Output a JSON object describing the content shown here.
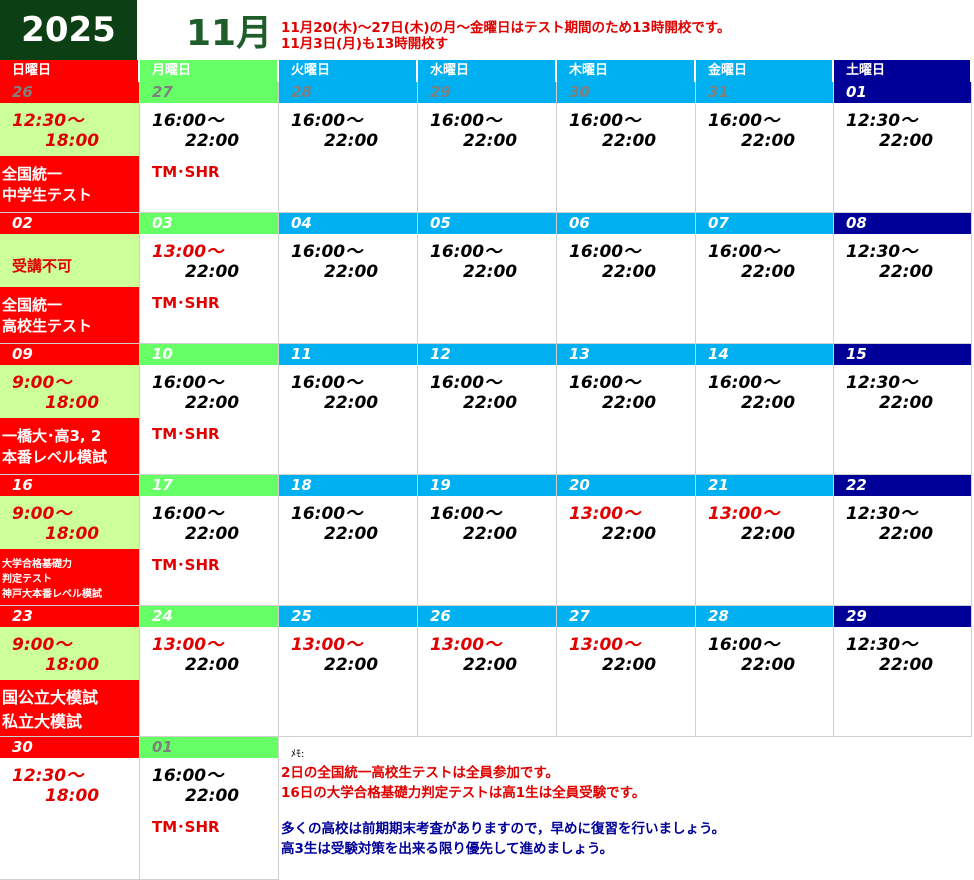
{
  "header": {
    "year": "2025",
    "month": "11月",
    "notice_lines": [
      "11月20(木)～27日(木)の月～金曜日はテスト期間のため13時開校です。",
      "11月3日(月)も13時開校す"
    ]
  },
  "weekdays": [
    "日曜日",
    "月曜日",
    "火曜日",
    "水曜日",
    "木曜日",
    "金曜日",
    "土曜日"
  ],
  "colors": {
    "sunday": "#ff0000",
    "monday": "#66ff66",
    "weekday": "#00b0f0",
    "saturday": "#000099",
    "sunday_cell": "#ccff99",
    "red_text": "#e00000",
    "dark_green": "#0d3f14",
    "grey_date": "#7f7f7f",
    "memo_blue": "#000099"
  },
  "weeks": [
    {
      "days": [
        {
          "date": "26",
          "line1": "12:30～",
          "line2": "18:00",
          "red": true,
          "event": [
            "全国統一",
            "中学生テスト"
          ],
          "dim": true
        },
        {
          "date": "27",
          "line1": "16:00～",
          "line2": "22:00",
          "tm": "TM･SHR",
          "dim": true
        },
        {
          "date": "28",
          "line1": "16:00～",
          "line2": "22:00",
          "dim": true
        },
        {
          "date": "29",
          "line1": "16:00～",
          "line2": "22:00",
          "dim": true
        },
        {
          "date": "30",
          "line1": "16:00～",
          "line2": "22:00",
          "dim": true
        },
        {
          "date": "31",
          "line1": "16:00～",
          "line2": "22:00",
          "dim": true
        },
        {
          "date": "01",
          "line1": "12:30～",
          "line2": "22:00"
        }
      ]
    },
    {
      "days": [
        {
          "date": "02",
          "closed": "受講不可",
          "event": [
            "全国統一",
            "高校生テスト"
          ]
        },
        {
          "date": "03",
          "line1": "13:00～",
          "line2": "22:00",
          "red1": true,
          "tm": "TM･SHR"
        },
        {
          "date": "04",
          "line1": "16:00～",
          "line2": "22:00"
        },
        {
          "date": "05",
          "line1": "16:00～",
          "line2": "22:00"
        },
        {
          "date": "06",
          "line1": "16:00～",
          "line2": "22:00"
        },
        {
          "date": "07",
          "line1": "16:00～",
          "line2": "22:00"
        },
        {
          "date": "08",
          "line1": "12:30～",
          "line2": "22:00"
        }
      ]
    },
    {
      "days": [
        {
          "date": "09",
          "line1": "9:00～",
          "line2": "18:00",
          "red": true,
          "event": [
            "一橋大･高3, 2",
            "本番レベル模試"
          ]
        },
        {
          "date": "10",
          "line1": "16:00～",
          "line2": "22:00",
          "tm": "TM･SHR"
        },
        {
          "date": "11",
          "line1": "16:00～",
          "line2": "22:00"
        },
        {
          "date": "12",
          "line1": "16:00～",
          "line2": "22:00"
        },
        {
          "date": "13",
          "line1": "16:00～",
          "line2": "22:00"
        },
        {
          "date": "14",
          "line1": "16:00～",
          "line2": "22:00"
        },
        {
          "date": "15",
          "line1": "12:30～",
          "line2": "22:00"
        }
      ]
    },
    {
      "days": [
        {
          "date": "16",
          "line1": "9:00～",
          "line2": "18:00",
          "red": true,
          "event": [
            "大学合格基礎力",
            "判定テスト",
            "神戸大本番レベル模試"
          ],
          "small": true
        },
        {
          "date": "17",
          "line1": "16:00～",
          "line2": "22:00",
          "tm": "TM･SHR"
        },
        {
          "date": "18",
          "line1": "16:00～",
          "line2": "22:00"
        },
        {
          "date": "19",
          "line1": "16:00～",
          "line2": "22:00"
        },
        {
          "date": "20",
          "line1": "13:00～",
          "line2": "22:00",
          "red1": true
        },
        {
          "date": "21",
          "line1": "13:00～",
          "line2": "22:00",
          "red1": true
        },
        {
          "date": "22",
          "line1": "12:30～",
          "line2": "22:00"
        }
      ]
    },
    {
      "days": [
        {
          "date": "23",
          "line1": "9:00～",
          "line2": "18:00",
          "red": true,
          "event": [
            "国公立大模試",
            "私立大模試"
          ],
          "big": true
        },
        {
          "date": "24",
          "line1": "13:00～",
          "line2": "22:00",
          "red1": true
        },
        {
          "date": "25",
          "line1": "13:00～",
          "line2": "22:00",
          "red1": true
        },
        {
          "date": "26",
          "line1": "13:00～",
          "line2": "22:00",
          "red1": true
        },
        {
          "date": "27",
          "line1": "13:00～",
          "line2": "22:00",
          "red1": true
        },
        {
          "date": "28",
          "line1": "16:00～",
          "line2": "22:00"
        },
        {
          "date": "29",
          "line1": "12:30～",
          "line2": "22:00"
        }
      ]
    },
    {
      "days": [
        {
          "date": "30",
          "line1": "12:30～",
          "line2": "18:00",
          "red": true
        },
        {
          "date": "01",
          "line1": "16:00～",
          "line2": "22:00",
          "tm": "TM･SHR",
          "dim": true
        }
      ]
    }
  ],
  "memo": {
    "label": "ﾒﾓ:",
    "red_lines": [
      "2日の全国統一高校生テストは全員参加です。",
      "16日の大学合格基礎力判定テストは高1生は全員受験です。"
    ],
    "blue_lines": [
      "多くの高校は前期期末考査がありますので，早めに復習を行いましょう。",
      "高3生は受験対策を出来る限り優先して進めましょう。"
    ]
  }
}
